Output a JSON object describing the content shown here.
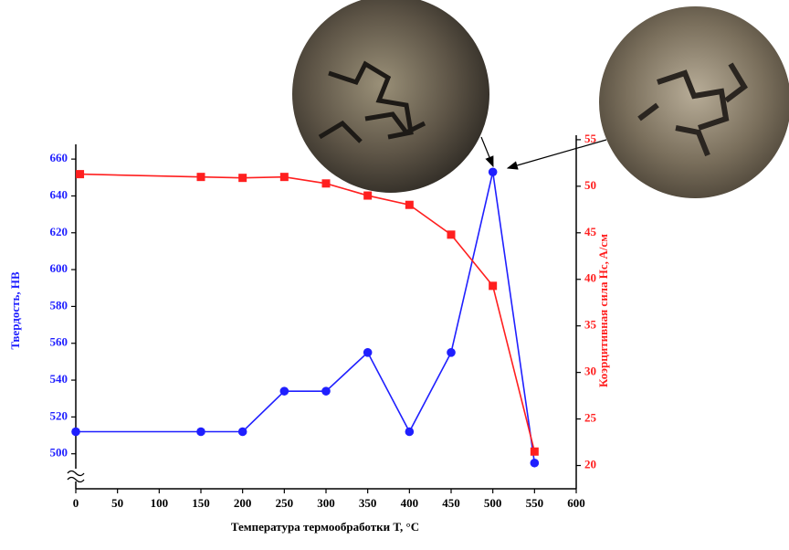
{
  "chart_data": {
    "type": "line",
    "xlabel": "Температура термообработки T, °C",
    "ylabel": "Твердость, HB",
    "y2label": "Коэрцитивная сила Hc, A/см",
    "xlim": [
      0,
      600
    ],
    "xticks": [
      0,
      50,
      100,
      150,
      200,
      250,
      300,
      350,
      400,
      450,
      500,
      550,
      600
    ],
    "ylim": [
      481,
      668
    ],
    "yticks": [
      500,
      520,
      540,
      560,
      580,
      600,
      620,
      640,
      660
    ],
    "y2lim": [
      17.5,
      54.5
    ],
    "y2ticks": [
      20,
      25,
      30,
      35,
      40,
      45,
      50,
      55
    ],
    "series": [
      {
        "name": "Твердость, HB",
        "color": "#1f1fff",
        "marker": "circle",
        "x": [
          0,
          150,
          200,
          250,
          300,
          350,
          400,
          450,
          500,
          550
        ],
        "values": [
          512,
          512,
          512,
          534,
          534,
          555,
          512,
          555,
          653,
          495
        ]
      },
      {
        "name": "Коэрцитивная сила Hc, A/см",
        "color": "#ff1f1f",
        "marker": "square",
        "axis": "y2",
        "x": [
          5,
          150,
          200,
          250,
          300,
          350,
          400,
          450,
          500,
          550
        ],
        "values": [
          51.3,
          51.0,
          50.9,
          51.0,
          50.3,
          49.0,
          48.0,
          44.8,
          39.3,
          21.5
        ]
      }
    ]
  }
}
